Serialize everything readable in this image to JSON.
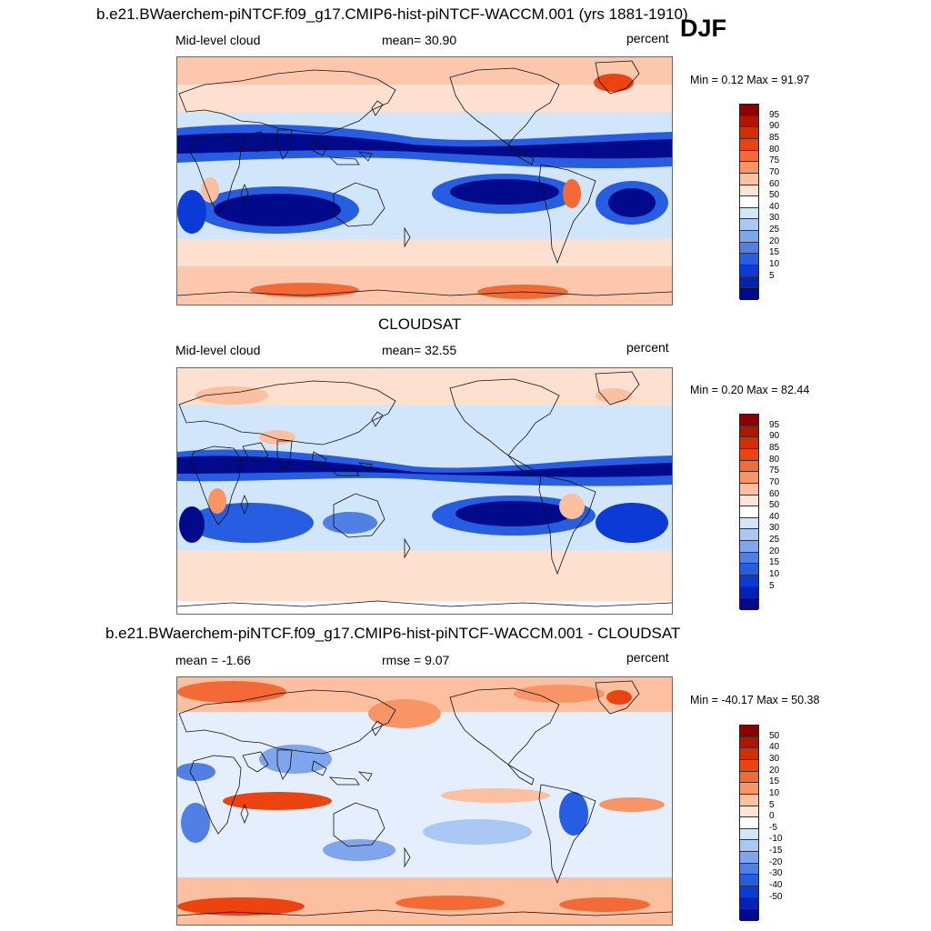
{
  "season": "DJF",
  "panels": [
    {
      "id": "model",
      "heading": "b.e21.BWaerchem-piNTCF.f09_g17.CMIP6-hist-piNTCF-WACCM.001 (yrs 1881-1910)",
      "left_label": "Mid-level cloud",
      "mid_label": "mean=  30.90",
      "right_label": "percent",
      "minmax": "Min =   0.12 Max =  91.97",
      "colorbar": {
        "labels": [
          "95",
          "90",
          "85",
          "80",
          "75",
          "70",
          "60",
          "50",
          "40",
          "30",
          "25",
          "20",
          "15",
          "10",
          "5"
        ],
        "colors": [
          "#8b0000",
          "#b01500",
          "#d42d00",
          "#ec4410",
          "#f46a36",
          "#f99466",
          "#fcbf9f",
          "#fde4d6",
          "#ffffff",
          "#d2e6fb",
          "#aac8f4",
          "#7fa5ec",
          "#5080e4",
          "#275de0",
          "#0b3ad6",
          "#0022b5",
          "#000a8a"
        ]
      }
    },
    {
      "id": "obs",
      "heading": "CLOUDSAT",
      "left_label": "Mid-level cloud",
      "mid_label": "mean=  32.55",
      "right_label": "percent",
      "minmax": "Min =   0.20 Max =  82.44",
      "colorbar": {
        "labels": [
          "95",
          "90",
          "85",
          "80",
          "75",
          "70",
          "60",
          "50",
          "40",
          "30",
          "25",
          "20",
          "15",
          "10",
          "5"
        ],
        "colors": [
          "#8b0000",
          "#b01500",
          "#d42d00",
          "#ec4410",
          "#f46a36",
          "#f99466",
          "#fcbf9f",
          "#fde4d6",
          "#ffffff",
          "#d2e6fb",
          "#aac8f4",
          "#7fa5ec",
          "#5080e4",
          "#275de0",
          "#0b3ad6",
          "#0022b5",
          "#000a8a"
        ]
      }
    },
    {
      "id": "diff",
      "heading": "b.e21.BWaerchem-piNTCF.f09_g17.CMIP6-hist-piNTCF-WACCM.001 - CLOUDSAT",
      "left_label": "mean =  -1.66",
      "mid_label": "rmse =   9.07",
      "right_label": "percent",
      "minmax": "Min = -40.17 Max =  50.38",
      "colorbar": {
        "labels": [
          "50",
          "40",
          "30",
          "20",
          "15",
          "10",
          "5",
          "0",
          "-5",
          "-10",
          "-15",
          "-20",
          "-30",
          "-40",
          "-50"
        ],
        "colors": [
          "#8b0000",
          "#b01500",
          "#d42d00",
          "#ec4410",
          "#f46a36",
          "#f99466",
          "#fcbf9f",
          "#fde4d6",
          "#ffffff",
          "#d2e6fb",
          "#aac8f4",
          "#7fa5ec",
          "#5080e4",
          "#275de0",
          "#0b3ad6",
          "#0022b5",
          "#000a8a"
        ]
      }
    }
  ]
}
